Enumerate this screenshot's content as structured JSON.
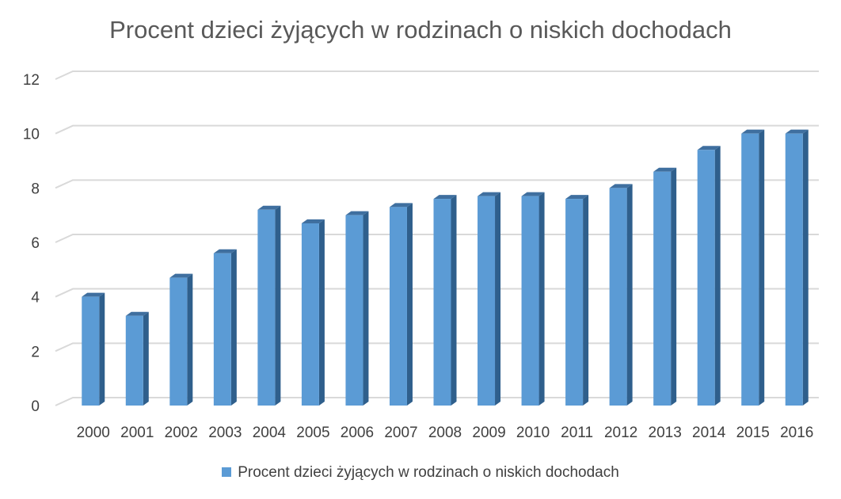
{
  "chart_data": {
    "type": "bar",
    "title": "Procent dzieci żyjących w rodzinach o niskich dochodach",
    "xlabel": "",
    "ylabel": "",
    "categories": [
      "2000",
      "2001",
      "2002",
      "2003",
      "2004",
      "2005",
      "2006",
      "2007",
      "2008",
      "2009",
      "2010",
      "2011",
      "2012",
      "2013",
      "2014",
      "2015",
      "2016"
    ],
    "series": [
      {
        "name": "Procent dzieci żyjących w rodzinach o niskich dochodach",
        "values": [
          4.0,
          3.3,
          4.7,
          5.6,
          7.2,
          6.7,
          7.0,
          7.3,
          7.6,
          7.7,
          7.7,
          7.6,
          8.0,
          8.6,
          9.4,
          10.0,
          10.0
        ]
      }
    ],
    "ylim": [
      0,
      12
    ],
    "yticks": [
      0,
      2,
      4,
      6,
      8,
      10,
      12
    ],
    "grid": true,
    "legend_position": "bottom",
    "colors": {
      "bar_front": "#5b9bd5",
      "bar_side": "#2f5f8c",
      "bar_top": "#3f6f9f",
      "grid": "#d9d9d9",
      "text": "#404040",
      "title": "#595959"
    }
  }
}
